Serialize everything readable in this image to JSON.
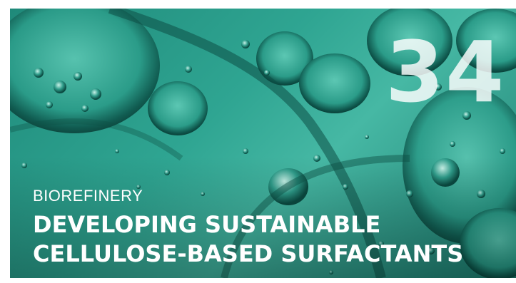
{
  "article": {
    "page_number": "34",
    "category": "BIOREFINERY",
    "title_lines": [
      "DEVELOPING SUSTAINABLE",
      "CELLULOSE-BASED SURFACTANTS"
    ]
  },
  "image": {
    "subject": "oil-bubbles-in-water",
    "palette": {
      "base": "#2fa592",
      "dark": "#0f5a50",
      "light": "#7fd6c4"
    }
  }
}
